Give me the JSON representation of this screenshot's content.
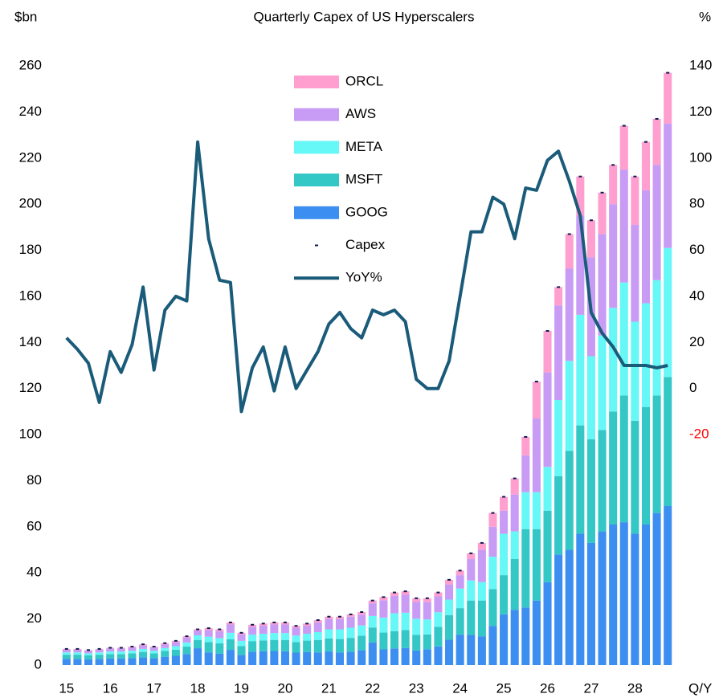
{
  "chart_data": {
    "type": "bar",
    "stacked": true,
    "title": "Quarterly Capex of US Hyperscalers",
    "ylabel": "$bn",
    "y2label": "%",
    "xlabel": "Q/Y",
    "categories": [
      "15",
      null,
      null,
      null,
      "16",
      null,
      null,
      null,
      "17",
      null,
      null,
      null,
      "18",
      null,
      null,
      null,
      "19",
      null,
      null,
      null,
      "20",
      null,
      null,
      null,
      "21",
      null,
      null,
      null,
      "22",
      null,
      null,
      null,
      "23",
      null,
      null,
      null,
      "24",
      null,
      null,
      null,
      "25",
      null,
      null,
      null,
      "26",
      null,
      null,
      null,
      "27",
      null,
      null,
      null,
      "28",
      null,
      null,
      null
    ],
    "ylim": [
      0,
      260
    ],
    "yticks": [
      0,
      20,
      40,
      60,
      80,
      100,
      120,
      140,
      160,
      180,
      200,
      220,
      240,
      260
    ],
    "y2lim": [
      -120,
      140
    ],
    "y2ticks": [
      -20,
      0,
      20,
      40,
      60,
      80,
      100,
      120,
      140
    ],
    "y2_negative_color": "#ff0000",
    "series": [
      {
        "name": "GOOG",
        "type": "bar",
        "color": "#3c8ff0",
        "values": [
          2.7,
          2.7,
          2.5,
          2.7,
          2.9,
          2.9,
          3.0,
          3.4,
          3.0,
          3.6,
          4.0,
          4.8,
          7.3,
          5.5,
          5.0,
          6.6,
          4.4,
          5.8,
          6.0,
          6.1,
          6.0,
          5.4,
          5.6,
          5.5,
          5.9,
          5.5,
          5.8,
          6.5,
          9.8,
          6.8,
          7.2,
          7.4,
          6.3,
          6.9,
          8.1,
          11.0,
          13.2,
          13.1,
          12.5,
          17.0,
          22,
          24,
          25,
          28,
          36,
          48,
          50,
          57,
          53,
          58,
          61,
          62,
          57,
          61,
          66,
          69
        ]
      },
      {
        "name": "MSFT",
        "type": "bar",
        "color": "#33c7c5",
        "values": [
          1.8,
          1.8,
          1.7,
          1.8,
          1.9,
          1.9,
          2.1,
          2.3,
          2.1,
          2.5,
          2.7,
          3.2,
          3.6,
          4.5,
          4.4,
          4.6,
          3.8,
          4.6,
          4.7,
          4.8,
          4.8,
          4.6,
          5.0,
          5.4,
          5.6,
          5.8,
          6.0,
          6.2,
          6.5,
          7.3,
          7.5,
          7.8,
          6.8,
          6.4,
          8.5,
          10.7,
          11.5,
          14.9,
          15.5,
          16.0,
          17,
          22,
          34,
          31,
          31,
          34,
          43,
          47,
          45,
          44,
          49,
          55,
          49,
          51,
          51,
          56
        ]
      },
      {
        "name": "META",
        "type": "bar",
        "color": "#66f7f7",
        "values": [
          1.0,
          1.0,
          0.9,
          1.0,
          1.1,
          1.1,
          1.1,
          1.3,
          1.1,
          1.3,
          1.5,
          1.8,
          2.0,
          2.3,
          2.3,
          2.8,
          2.3,
          2.8,
          2.9,
          3.0,
          3.1,
          2.8,
          3.0,
          3.4,
          4.0,
          4.2,
          4.4,
          4.5,
          5.0,
          6.5,
          7.8,
          7.5,
          7.0,
          6.5,
          6.3,
          6.7,
          8.5,
          8.7,
          8.0,
          14.0,
          18,
          12,
          16,
          16,
          19,
          33,
          39,
          48,
          36,
          41,
          45,
          49,
          43,
          45,
          50,
          56
        ]
      },
      {
        "name": "AWS",
        "type": "bar",
        "color": "#c89cf4",
        "values": [
          1.2,
          1.2,
          1.1,
          1.2,
          1.3,
          1.3,
          1.4,
          1.5,
          1.4,
          1.6,
          1.8,
          2.1,
          2.1,
          2.9,
          3.0,
          3.6,
          2.8,
          3.4,
          3.5,
          3.7,
          3.7,
          3.4,
          3.5,
          4.2,
          4.5,
          4.5,
          4.8,
          4.7,
          5.5,
          7.5,
          7.5,
          7.8,
          7.4,
          7.6,
          6.9,
          6.6,
          5.8,
          9.3,
          14.0,
          13.0,
          10,
          16,
          16,
          32,
          41,
          41,
          40,
          43,
          43,
          44,
          45,
          49,
          42,
          49,
          50,
          54
        ]
      },
      {
        "name": "ORCL",
        "type": "bar",
        "color": "#ff9fcf",
        "values": [
          0.3,
          0.3,
          0.3,
          0.3,
          0.3,
          0.3,
          0.4,
          0.5,
          0.4,
          0.5,
          0.5,
          0.6,
          0.5,
          0.8,
          0.8,
          0.9,
          0.7,
          0.9,
          0.9,
          0.9,
          0.9,
          0.8,
          0.9,
          1.0,
          1.0,
          1.0,
          1.0,
          1.1,
          1.2,
          1.4,
          1.5,
          1.5,
          1.5,
          1.6,
          1.7,
          2.0,
          2.0,
          2.5,
          3.0,
          6.0,
          6,
          7,
          8,
          16,
          18,
          8,
          15,
          17,
          16,
          18,
          17,
          19,
          21,
          21,
          20,
          22
        ]
      },
      {
        "name": "Capex",
        "type": "marker",
        "color": "#0b1a4f",
        "values": [
          7,
          7,
          6.5,
          7,
          7.5,
          7.5,
          8,
          9,
          8,
          9.5,
          10.5,
          12.5,
          15.5,
          16,
          15.5,
          18.5,
          14,
          17.5,
          18,
          18.5,
          18.5,
          17,
          18,
          19.5,
          21,
          21,
          22,
          23,
          28,
          29.5,
          31.5,
          32,
          29,
          29,
          31.5,
          37,
          41,
          48.5,
          53,
          66,
          73,
          81,
          99,
          123,
          145,
          164,
          187,
          212,
          193,
          205,
          217,
          234,
          212,
          227,
          237,
          257
        ]
      },
      {
        "name": "YoY%",
        "type": "line",
        "axis": "y2",
        "color": "#1b5b7a",
        "values": [
          22,
          17,
          11,
          -6,
          16,
          7,
          19,
          44,
          8,
          34,
          40,
          38,
          107,
          65,
          47,
          46,
          -10,
          9,
          18,
          -1,
          18,
          0,
          8,
          16,
          28,
          33,
          26,
          22,
          34,
          32,
          34,
          29,
          4,
          0,
          0,
          12,
          40,
          68,
          68,
          83,
          80,
          65,
          87,
          86,
          99,
          103,
          90,
          75,
          33,
          24,
          18,
          10,
          10,
          10,
          9,
          10
        ]
      }
    ]
  }
}
